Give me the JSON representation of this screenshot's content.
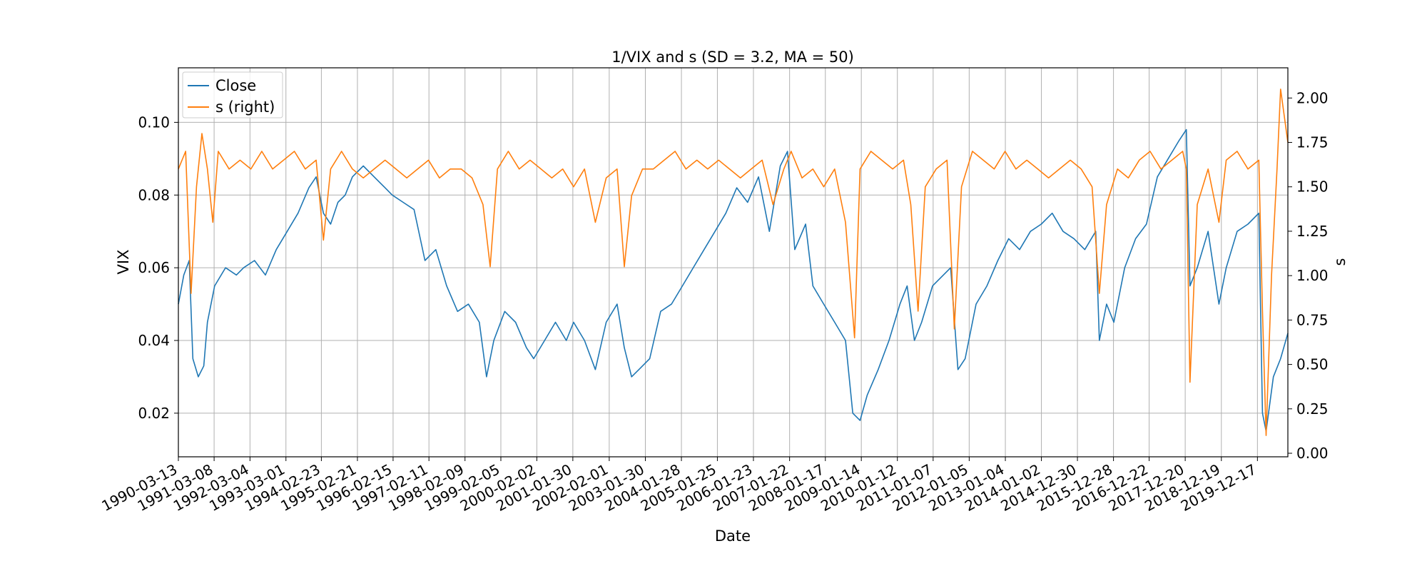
{
  "chart_data": {
    "type": "line",
    "title": "1/VIX and s (SD = 3.2, MA = 50)",
    "xlabel": "Date",
    "ylabel_left": "VIX",
    "ylabel_right": "s",
    "grid": true,
    "legend_position": "top-left",
    "x_tick_labels": [
      "1990-03-13",
      "1991-03-08",
      "1992-03-04",
      "1993-03-01",
      "1994-02-23",
      "1995-02-21",
      "1996-02-15",
      "1997-02-11",
      "1998-02-09",
      "1999-02-05",
      "2000-02-02",
      "2001-01-30",
      "2002-02-01",
      "2003-01-30",
      "2004-01-28",
      "2005-01-25",
      "2006-01-23",
      "2007-01-22",
      "2008-01-17",
      "2009-01-14",
      "2010-01-12",
      "2011-01-07",
      "2012-01-05",
      "2013-01-04",
      "2014-01-02",
      "2014-12-30",
      "2015-12-28",
      "2016-12-22",
      "2017-12-20",
      "2018-12-19",
      "2019-12-17"
    ],
    "x_range_years": [
      1990.2,
      2020.8
    ],
    "ylim_left": [
      0.008,
      0.115
    ],
    "yticks_left": [
      "0.02",
      "0.04",
      "0.06",
      "0.08",
      "0.10"
    ],
    "ylim_right": [
      -0.02,
      2.17
    ],
    "yticks_right": [
      "0.00",
      "0.25",
      "0.50",
      "0.75",
      "1.00",
      "1.25",
      "1.50",
      "1.75",
      "2.00"
    ],
    "series": [
      {
        "name": "Close",
        "axis": "left",
        "color": "#1f77b4",
        "points": [
          [
            1990.2,
            0.05
          ],
          [
            1990.35,
            0.058
          ],
          [
            1990.5,
            0.062
          ],
          [
            1990.6,
            0.035
          ],
          [
            1990.75,
            0.03
          ],
          [
            1990.9,
            0.033
          ],
          [
            1991.0,
            0.045
          ],
          [
            1991.2,
            0.055
          ],
          [
            1991.5,
            0.06
          ],
          [
            1991.8,
            0.058
          ],
          [
            1992.0,
            0.06
          ],
          [
            1992.3,
            0.062
          ],
          [
            1992.6,
            0.058
          ],
          [
            1992.9,
            0.065
          ],
          [
            1993.2,
            0.07
          ],
          [
            1993.5,
            0.075
          ],
          [
            1993.8,
            0.082
          ],
          [
            1994.0,
            0.085
          ],
          [
            1994.2,
            0.075
          ],
          [
            1994.4,
            0.072
          ],
          [
            1994.6,
            0.078
          ],
          [
            1994.8,
            0.08
          ],
          [
            1995.0,
            0.085
          ],
          [
            1995.3,
            0.088
          ],
          [
            1995.6,
            0.085
          ],
          [
            1995.9,
            0.082
          ],
          [
            1996.1,
            0.08
          ],
          [
            1996.4,
            0.078
          ],
          [
            1996.7,
            0.076
          ],
          [
            1997.0,
            0.062
          ],
          [
            1997.3,
            0.065
          ],
          [
            1997.6,
            0.055
          ],
          [
            1997.9,
            0.048
          ],
          [
            1998.2,
            0.05
          ],
          [
            1998.5,
            0.045
          ],
          [
            1998.7,
            0.03
          ],
          [
            1998.9,
            0.04
          ],
          [
            1999.2,
            0.048
          ],
          [
            1999.5,
            0.045
          ],
          [
            1999.8,
            0.038
          ],
          [
            2000.0,
            0.035
          ],
          [
            2000.3,
            0.04
          ],
          [
            2000.6,
            0.045
          ],
          [
            2000.9,
            0.04
          ],
          [
            2001.1,
            0.045
          ],
          [
            2001.4,
            0.04
          ],
          [
            2001.7,
            0.032
          ],
          [
            2002.0,
            0.045
          ],
          [
            2002.3,
            0.05
          ],
          [
            2002.5,
            0.038
          ],
          [
            2002.7,
            0.03
          ],
          [
            2002.9,
            0.032
          ],
          [
            2003.2,
            0.035
          ],
          [
            2003.5,
            0.048
          ],
          [
            2003.8,
            0.05
          ],
          [
            2004.1,
            0.055
          ],
          [
            2004.4,
            0.06
          ],
          [
            2004.7,
            0.065
          ],
          [
            2005.0,
            0.07
          ],
          [
            2005.3,
            0.075
          ],
          [
            2005.6,
            0.082
          ],
          [
            2005.9,
            0.078
          ],
          [
            2006.2,
            0.085
          ],
          [
            2006.5,
            0.07
          ],
          [
            2006.8,
            0.088
          ],
          [
            2007.0,
            0.092
          ],
          [
            2007.2,
            0.065
          ],
          [
            2007.5,
            0.072
          ],
          [
            2007.7,
            0.055
          ],
          [
            2008.0,
            0.05
          ],
          [
            2008.3,
            0.045
          ],
          [
            2008.6,
            0.04
          ],
          [
            2008.8,
            0.02
          ],
          [
            2009.0,
            0.018
          ],
          [
            2009.2,
            0.025
          ],
          [
            2009.5,
            0.032
          ],
          [
            2009.8,
            0.04
          ],
          [
            2010.1,
            0.05
          ],
          [
            2010.3,
            0.055
          ],
          [
            2010.5,
            0.04
          ],
          [
            2010.7,
            0.045
          ],
          [
            2011.0,
            0.055
          ],
          [
            2011.3,
            0.058
          ],
          [
            2011.5,
            0.06
          ],
          [
            2011.7,
            0.032
          ],
          [
            2011.9,
            0.035
          ],
          [
            2012.2,
            0.05
          ],
          [
            2012.5,
            0.055
          ],
          [
            2012.8,
            0.062
          ],
          [
            2013.1,
            0.068
          ],
          [
            2013.4,
            0.065
          ],
          [
            2013.7,
            0.07
          ],
          [
            2014.0,
            0.072
          ],
          [
            2014.3,
            0.075
          ],
          [
            2014.6,
            0.07
          ],
          [
            2014.9,
            0.068
          ],
          [
            2015.2,
            0.065
          ],
          [
            2015.5,
            0.07
          ],
          [
            2015.6,
            0.04
          ],
          [
            2015.8,
            0.05
          ],
          [
            2016.0,
            0.045
          ],
          [
            2016.3,
            0.06
          ],
          [
            2016.6,
            0.068
          ],
          [
            2016.9,
            0.072
          ],
          [
            2017.2,
            0.085
          ],
          [
            2017.5,
            0.09
          ],
          [
            2017.8,
            0.095
          ],
          [
            2018.0,
            0.098
          ],
          [
            2018.1,
            0.055
          ],
          [
            2018.3,
            0.06
          ],
          [
            2018.6,
            0.07
          ],
          [
            2018.9,
            0.05
          ],
          [
            2019.1,
            0.06
          ],
          [
            2019.4,
            0.07
          ],
          [
            2019.7,
            0.072
          ],
          [
            2020.0,
            0.075
          ],
          [
            2020.1,
            0.02
          ],
          [
            2020.2,
            0.015
          ],
          [
            2020.4,
            0.03
          ],
          [
            2020.6,
            0.035
          ],
          [
            2020.8,
            0.042
          ]
        ]
      },
      {
        "name": "s (right)",
        "axis": "right",
        "color": "#ff7f0e",
        "points": [
          [
            1990.2,
            1.6
          ],
          [
            1990.4,
            1.7
          ],
          [
            1990.55,
            0.9
          ],
          [
            1990.7,
            1.5
          ],
          [
            1990.85,
            1.8
          ],
          [
            1991.0,
            1.6
          ],
          [
            1991.15,
            1.3
          ],
          [
            1991.3,
            1.7
          ],
          [
            1991.6,
            1.6
          ],
          [
            1991.9,
            1.65
          ],
          [
            1992.2,
            1.6
          ],
          [
            1992.5,
            1.7
          ],
          [
            1992.8,
            1.6
          ],
          [
            1993.1,
            1.65
          ],
          [
            1993.4,
            1.7
          ],
          [
            1993.7,
            1.6
          ],
          [
            1994.0,
            1.65
          ],
          [
            1994.2,
            1.2
          ],
          [
            1994.4,
            1.6
          ],
          [
            1994.7,
            1.7
          ],
          [
            1995.0,
            1.6
          ],
          [
            1995.3,
            1.55
          ],
          [
            1995.6,
            1.6
          ],
          [
            1995.9,
            1.65
          ],
          [
            1996.2,
            1.6
          ],
          [
            1996.5,
            1.55
          ],
          [
            1996.8,
            1.6
          ],
          [
            1997.1,
            1.65
          ],
          [
            1997.4,
            1.55
          ],
          [
            1997.7,
            1.6
          ],
          [
            1998.0,
            1.6
          ],
          [
            1998.3,
            1.55
          ],
          [
            1998.6,
            1.4
          ],
          [
            1998.8,
            1.05
          ],
          [
            1999.0,
            1.6
          ],
          [
            1999.3,
            1.7
          ],
          [
            1999.6,
            1.6
          ],
          [
            1999.9,
            1.65
          ],
          [
            2000.2,
            1.6
          ],
          [
            2000.5,
            1.55
          ],
          [
            2000.8,
            1.6
          ],
          [
            2001.1,
            1.5
          ],
          [
            2001.4,
            1.6
          ],
          [
            2001.7,
            1.3
          ],
          [
            2002.0,
            1.55
          ],
          [
            2002.3,
            1.6
          ],
          [
            2002.5,
            1.05
          ],
          [
            2002.7,
            1.45
          ],
          [
            2003.0,
            1.6
          ],
          [
            2003.3,
            1.6
          ],
          [
            2003.6,
            1.65
          ],
          [
            2003.9,
            1.7
          ],
          [
            2004.2,
            1.6
          ],
          [
            2004.5,
            1.65
          ],
          [
            2004.8,
            1.6
          ],
          [
            2005.1,
            1.65
          ],
          [
            2005.4,
            1.6
          ],
          [
            2005.7,
            1.55
          ],
          [
            2006.0,
            1.6
          ],
          [
            2006.3,
            1.65
          ],
          [
            2006.6,
            1.4
          ],
          [
            2006.9,
            1.6
          ],
          [
            2007.1,
            1.7
          ],
          [
            2007.4,
            1.55
          ],
          [
            2007.7,
            1.6
          ],
          [
            2008.0,
            1.5
          ],
          [
            2008.3,
            1.6
          ],
          [
            2008.6,
            1.3
          ],
          [
            2008.85,
            0.65
          ],
          [
            2009.0,
            1.6
          ],
          [
            2009.3,
            1.7
          ],
          [
            2009.6,
            1.65
          ],
          [
            2009.9,
            1.6
          ],
          [
            2010.2,
            1.65
          ],
          [
            2010.4,
            1.4
          ],
          [
            2010.6,
            0.8
          ],
          [
            2010.8,
            1.5
          ],
          [
            2011.1,
            1.6
          ],
          [
            2011.4,
            1.65
          ],
          [
            2011.6,
            0.7
          ],
          [
            2011.8,
            1.5
          ],
          [
            2012.1,
            1.7
          ],
          [
            2012.4,
            1.65
          ],
          [
            2012.7,
            1.6
          ],
          [
            2013.0,
            1.7
          ],
          [
            2013.3,
            1.6
          ],
          [
            2013.6,
            1.65
          ],
          [
            2013.9,
            1.6
          ],
          [
            2014.2,
            1.55
          ],
          [
            2014.5,
            1.6
          ],
          [
            2014.8,
            1.65
          ],
          [
            2015.1,
            1.6
          ],
          [
            2015.4,
            1.5
          ],
          [
            2015.6,
            0.9
          ],
          [
            2015.8,
            1.4
          ],
          [
            2016.1,
            1.6
          ],
          [
            2016.4,
            1.55
          ],
          [
            2016.7,
            1.65
          ],
          [
            2017.0,
            1.7
          ],
          [
            2017.3,
            1.6
          ],
          [
            2017.6,
            1.65
          ],
          [
            2017.9,
            1.7
          ],
          [
            2018.0,
            1.6
          ],
          [
            2018.1,
            0.4
          ],
          [
            2018.3,
            1.4
          ],
          [
            2018.6,
            1.6
          ],
          [
            2018.9,
            1.3
          ],
          [
            2019.1,
            1.65
          ],
          [
            2019.4,
            1.7
          ],
          [
            2019.7,
            1.6
          ],
          [
            2020.0,
            1.65
          ],
          [
            2020.1,
            0.8
          ],
          [
            2020.2,
            0.1
          ],
          [
            2020.35,
            1.0
          ],
          [
            2020.5,
            1.6
          ],
          [
            2020.6,
            2.05
          ],
          [
            2020.8,
            1.75
          ]
        ]
      }
    ]
  }
}
